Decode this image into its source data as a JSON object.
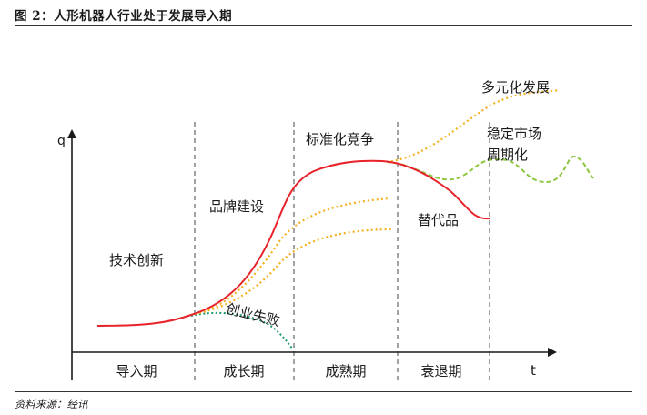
{
  "header": {
    "title": "图 2：人形机器人行业处于发展导入期"
  },
  "footer": {
    "source": "资料来源：经讯"
  },
  "axes": {
    "y_label": "q",
    "x_label": "t"
  },
  "phases": [
    {
      "label": "导入期"
    },
    {
      "label": "成长期"
    },
    {
      "label": "成熟期"
    },
    {
      "label": "衰退期"
    }
  ],
  "annotations": {
    "innovation": "技术创新",
    "brand": "品牌建设",
    "standardization": "标准化竞争",
    "substitute": "替代品",
    "diversification": "多元化发展",
    "stable_line1": "稳定市场",
    "stable_line2": "周期化",
    "startup_fail": "创业失败"
  },
  "colors": {
    "main_curve": "#e8222a",
    "branch_curve": "#f5b120",
    "cyclic_curve": "#8cc63f",
    "failure_curve": "#1f9a6a",
    "divider": "#666666",
    "axis": "#1a1a1a"
  }
}
